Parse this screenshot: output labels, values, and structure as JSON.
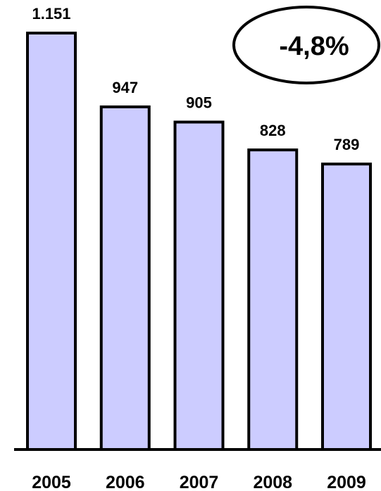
{
  "chart_data": {
    "type": "bar",
    "categories": [
      "2005",
      "2006",
      "2007",
      "2008",
      "2009"
    ],
    "values": [
      1151,
      947,
      905,
      828,
      789
    ],
    "value_labels": [
      "1.151",
      "947",
      "905",
      "828",
      "789"
    ],
    "title": "",
    "xlabel": "",
    "ylabel": "",
    "ylim": [
      0,
      1151
    ],
    "grid": false,
    "legend": "none",
    "bar_color": "#ccccff",
    "annotation": {
      "text": "-4,8%",
      "placement": "top-right"
    }
  }
}
